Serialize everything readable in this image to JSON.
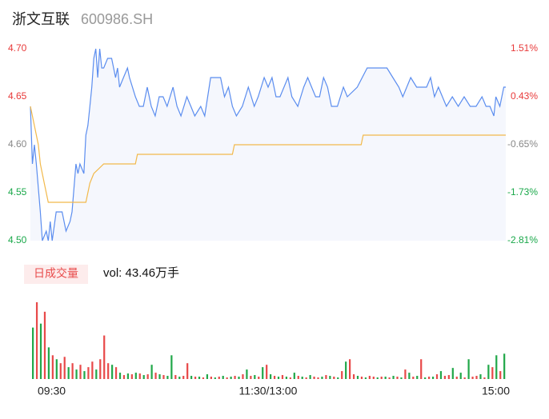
{
  "header": {
    "title": "浙文互联",
    "code": "600986.SH"
  },
  "chart_data": [
    {
      "type": "line",
      "xlim": [
        0,
        240
      ],
      "ylim": [
        4.5,
        4.7
      ],
      "yticks": [
        {
          "value": 4.5,
          "label": "4.50"
        },
        4.55,
        {
          "value": 4.6,
          "label": "4.60"
        },
        4.65,
        {
          "value": 4.7,
          "label": "4.70"
        }
      ],
      "ytick_colors": [
        "#1aa84a",
        "#1aa84a",
        "#888888",
        "#e83a3a",
        "#e83a3a"
      ],
      "y2lim": [
        -2.81,
        1.51
      ],
      "y2ticks": [
        {
          "value": -2.81,
          "label": "-2.81%"
        },
        {
          "value": -1.73,
          "label": "-1.73%"
        },
        {
          "value": -0.65,
          "label": "-0.65%"
        },
        {
          "value": 0.43,
          "label": "0.43%"
        },
        {
          "value": 1.51,
          "label": "1.51%"
        }
      ],
      "y2tick_colors": [
        "#1aa84a",
        "#1aa84a",
        "#888888",
        "#e83a3a",
        "#e83a3a"
      ],
      "area_color": "#f5f7fd",
      "series": [
        {
          "color": "#5b8def",
          "x": [
            0,
            1,
            2,
            3,
            5,
            6,
            8,
            9,
            10,
            11,
            13,
            16,
            18,
            20,
            21,
            23,
            24,
            25,
            27,
            28,
            29,
            30,
            31,
            32,
            33,
            34,
            35,
            36,
            37,
            39,
            41,
            43,
            44,
            45,
            47,
            49,
            50,
            53,
            55,
            57,
            59,
            61,
            63,
            65,
            67,
            69,
            72,
            74,
            76,
            79,
            81,
            83,
            86,
            88,
            91,
            96,
            98,
            100,
            102,
            104,
            107,
            110,
            113,
            115,
            118,
            120,
            122,
            124,
            126,
            130,
            132,
            135,
            138,
            140,
            142,
            144,
            146,
            148,
            150,
            152,
            155,
            158,
            160,
            165,
            170,
            180,
            183,
            186,
            188,
            192,
            195,
            200,
            202,
            204,
            206,
            210,
            213,
            216,
            219,
            222,
            225,
            228,
            230,
            232,
            234,
            235,
            237,
            239,
            240
          ],
          "values": [
            4.64,
            4.58,
            4.6,
            4.58,
            4.53,
            4.5,
            4.51,
            4.5,
            4.52,
            4.5,
            4.53,
            4.53,
            4.51,
            4.52,
            4.53,
            4.58,
            4.57,
            4.58,
            4.57,
            4.61,
            4.62,
            4.64,
            4.66,
            4.69,
            4.7,
            4.67,
            4.7,
            4.68,
            4.68,
            4.69,
            4.69,
            4.67,
            4.68,
            4.66,
            4.67,
            4.68,
            4.67,
            4.65,
            4.64,
            4.64,
            4.66,
            4.64,
            4.63,
            4.65,
            4.65,
            4.64,
            4.66,
            4.64,
            4.63,
            4.65,
            4.64,
            4.63,
            4.64,
            4.63,
            4.67,
            4.67,
            4.65,
            4.66,
            4.64,
            4.63,
            4.64,
            4.66,
            4.64,
            4.65,
            4.67,
            4.66,
            4.67,
            4.65,
            4.65,
            4.67,
            4.65,
            4.64,
            4.66,
            4.67,
            4.66,
            4.65,
            4.65,
            4.67,
            4.66,
            4.64,
            4.64,
            4.66,
            4.65,
            4.66,
            4.68,
            4.68,
            4.67,
            4.66,
            4.65,
            4.67,
            4.66,
            4.66,
            4.67,
            4.65,
            4.66,
            4.64,
            4.65,
            4.64,
            4.65,
            4.64,
            4.64,
            4.65,
            4.64,
            4.64,
            4.63,
            4.65,
            4.64,
            4.66,
            4.66
          ]
        },
        {
          "color": "#f2b94b",
          "x": [
            0,
            4,
            5,
            7,
            9,
            28,
            30,
            32,
            37,
            53,
            54,
            102,
            103,
            167,
            168,
            240
          ],
          "values": [
            4.64,
            4.6,
            4.58,
            4.56,
            4.54,
            4.54,
            4.56,
            4.57,
            4.58,
            4.58,
            4.59,
            4.59,
            4.6,
            4.6,
            4.61,
            4.61
          ]
        }
      ]
    },
    {
      "type": "bar",
      "title": "日成交量",
      "summary": "vol: 43.46万手",
      "xlim": [
        0,
        240
      ],
      "xticks": [
        {
          "value": 0,
          "label": "09:30"
        },
        {
          "value": 120,
          "label": "11:30/13:00"
        },
        {
          "value": 240,
          "label": "15:00"
        }
      ],
      "ylim": [
        0,
        15000
      ],
      "color_up": "#e84a4a",
      "color_down": "#22a84a",
      "label_bg": "#fdecec",
      "values": [
        9750,
        14550,
        10500,
        12750,
        6000,
        4500,
        3750,
        3000,
        4200,
        2250,
        3000,
        1800,
        2700,
        1500,
        2250,
        3300,
        1800,
        3750,
        8250,
        3000,
        2700,
        2250,
        1200,
        750,
        1050,
        900,
        1200,
        1050,
        750,
        900,
        2700,
        1200,
        900,
        750,
        600,
        4500,
        750,
        450,
        600,
        3000,
        600,
        450,
        450,
        300,
        900,
        450,
        300,
        450,
        600,
        300,
        450,
        600,
        450,
        900,
        1800,
        600,
        750,
        450,
        2250,
        2700,
        900,
        600,
        450,
        750,
        450,
        300,
        1200,
        600,
        450,
        300,
        750,
        450,
        300,
        450,
        750,
        600,
        450,
        300,
        1500,
        3300,
        3750,
        900,
        600,
        450,
        300,
        600,
        450,
        300,
        450,
        450,
        300,
        600,
        450,
        300,
        1800,
        1200,
        450,
        600,
        3750,
        300,
        450,
        450,
        900,
        1500,
        600,
        750,
        2100,
        450,
        1200,
        300,
        3750,
        450,
        600,
        900,
        300,
        2700,
        2250,
        4500,
        1500,
        4800
      ],
      "directions": [
        -1,
        1,
        -1,
        1,
        -1,
        1,
        -1,
        1,
        1,
        -1,
        1,
        -1,
        1,
        -1,
        1,
        1,
        -1,
        1,
        1,
        1,
        -1,
        1,
        -1,
        1,
        -1,
        1,
        -1,
        1,
        -1,
        1,
        -1,
        1,
        -1,
        1,
        -1,
        -1,
        1,
        -1,
        1,
        1,
        -1,
        1,
        -1,
        1,
        -1,
        1,
        -1,
        1,
        -1,
        1,
        -1,
        1,
        -1,
        1,
        -1,
        1,
        -1,
        1,
        -1,
        1,
        -1,
        1,
        -1,
        1,
        -1,
        1,
        -1,
        1,
        -1,
        1,
        -1,
        1,
        1,
        -1,
        1,
        -1,
        1,
        -1,
        1,
        -1,
        1,
        1,
        -1,
        1,
        -1,
        1,
        1,
        -1,
        1,
        -1,
        1,
        -1,
        1,
        -1,
        1,
        -1,
        1,
        -1,
        1,
        -1,
        1,
        -1,
        1,
        -1,
        1,
        1,
        -1,
        1,
        -1,
        1,
        -1,
        1,
        1,
        -1,
        1,
        -1,
        1,
        -1,
        1,
        -1
      ]
    }
  ]
}
